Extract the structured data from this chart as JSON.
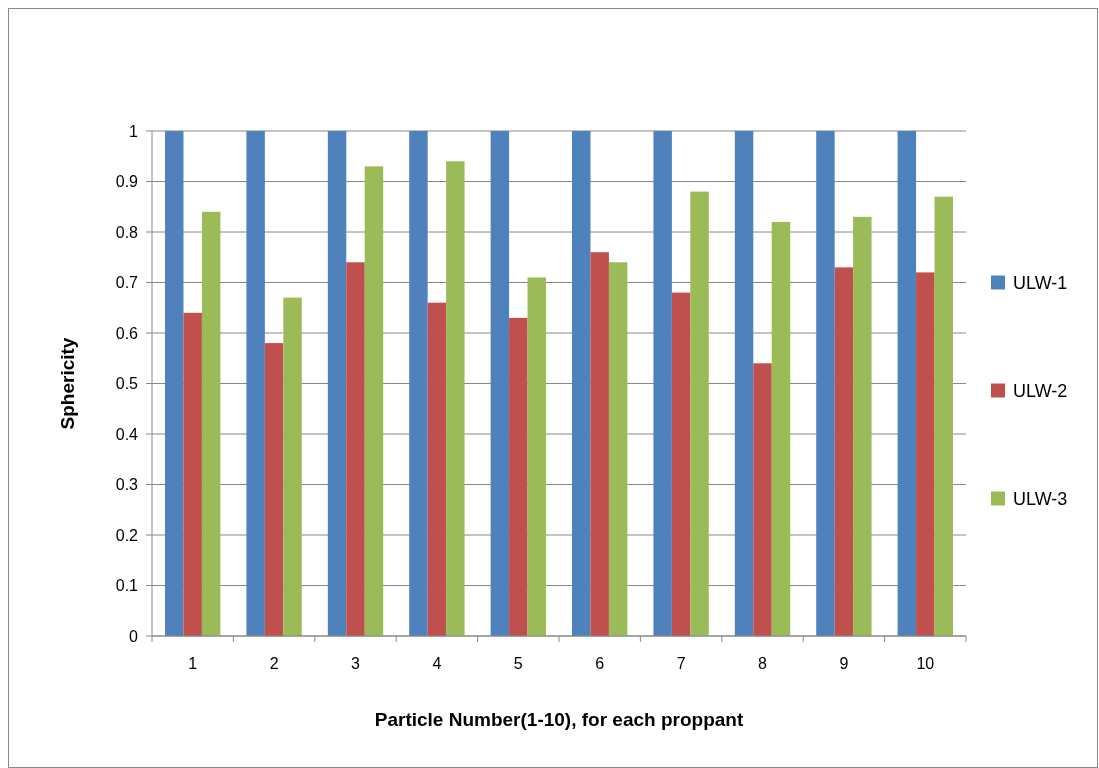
{
  "chart_data": {
    "type": "bar",
    "xlabel": "Particle Number(1-10), for each proppant",
    "ylabel": "Sphericity",
    "categories": [
      "1",
      "2",
      "3",
      "4",
      "5",
      "6",
      "7",
      "8",
      "9",
      "10"
    ],
    "series": [
      {
        "name": "ULW-1",
        "color": "#4f81bd",
        "values": [
          1,
          1,
          1,
          1,
          1,
          1,
          1,
          1,
          1,
          1
        ]
      },
      {
        "name": "ULW-2",
        "color": "#c0504d",
        "values": [
          0.64,
          0.58,
          0.74,
          0.66,
          0.63,
          0.76,
          0.68,
          0.54,
          0.73,
          0.72
        ]
      },
      {
        "name": "ULW-3",
        "color": "#9bbb59",
        "values": [
          0.84,
          0.67,
          0.93,
          0.94,
          0.71,
          0.74,
          0.88,
          0.82,
          0.83,
          0.87
        ]
      }
    ],
    "ylim": [
      0,
      1
    ],
    "yticks": [
      0,
      0.1,
      0.2,
      0.3,
      0.4,
      0.5,
      0.6,
      0.7,
      0.8,
      0.9,
      1
    ],
    "grid": "y",
    "legend": "right"
  }
}
